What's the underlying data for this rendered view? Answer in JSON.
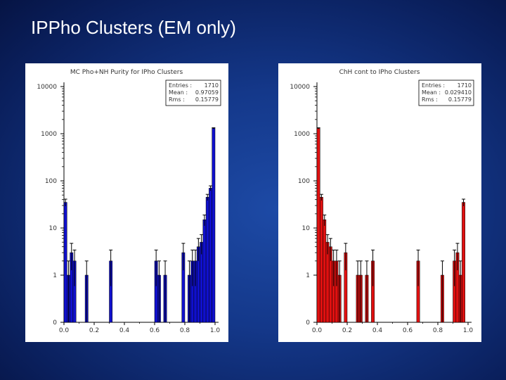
{
  "slide": {
    "title": "IPPho Clusters (EM only)"
  },
  "colors": {
    "left_bar": "#1010cc",
    "right_bar": "#e01010",
    "error_bar": "#000000"
  },
  "chart_data": [
    {
      "type": "bar",
      "title": "MC Pho+NH Purity for IPho Clusters",
      "yscale": "log",
      "xlim": [
        0.0,
        1.0
      ],
      "ylim_display": [
        0,
        10000
      ],
      "x_ticks": [
        "0.0",
        "0.2",
        "0.4",
        "0.6",
        "0.8",
        "1.0"
      ],
      "y_ticks": [
        {
          "label": "10000",
          "value": 10000
        },
        {
          "label": "1000",
          "value": 1000
        },
        {
          "label": "100",
          "value": 100
        },
        {
          "label": "10",
          "value": 10
        },
        {
          "label": "1",
          "value": 1
        },
        {
          "label": "0",
          "value": 0
        }
      ],
      "stats": [
        {
          "label": "Entries :",
          "value": "1710"
        },
        {
          "label": "Mean :",
          "value": "0.97059"
        },
        {
          "label": "Rms :",
          "value": "0.15779"
        }
      ],
      "bin_width": 0.02,
      "bars": [
        {
          "x": 0.0,
          "y": 35
        },
        {
          "x": 0.02,
          "y": 1
        },
        {
          "x": 0.04,
          "y": 3
        },
        {
          "x": 0.06,
          "y": 2
        },
        {
          "x": 0.14,
          "y": 1
        },
        {
          "x": 0.3,
          "y": 2
        },
        {
          "x": 0.6,
          "y": 2
        },
        {
          "x": 0.62,
          "y": 1
        },
        {
          "x": 0.66,
          "y": 1
        },
        {
          "x": 0.78,
          "y": 3
        },
        {
          "x": 0.82,
          "y": 1
        },
        {
          "x": 0.84,
          "y": 2
        },
        {
          "x": 0.86,
          "y": 2
        },
        {
          "x": 0.88,
          "y": 4
        },
        {
          "x": 0.9,
          "y": 5
        },
        {
          "x": 0.92,
          "y": 15
        },
        {
          "x": 0.94,
          "y": 45
        },
        {
          "x": 0.96,
          "y": 70
        },
        {
          "x": 0.98,
          "y": 1300
        }
      ]
    },
    {
      "type": "bar",
      "title": "ChH cont to IPho Clusters",
      "yscale": "log",
      "xlim": [
        0.0,
        1.0
      ],
      "ylim_display": [
        0,
        10000
      ],
      "x_ticks": [
        "0.0",
        "0.2",
        "0.4",
        "0.6",
        "0.8",
        "1.0"
      ],
      "y_ticks": [
        {
          "label": "10000",
          "value": 10000
        },
        {
          "label": "1000",
          "value": 1000
        },
        {
          "label": "100",
          "value": 100
        },
        {
          "label": "10",
          "value": 10
        },
        {
          "label": "1",
          "value": 1
        },
        {
          "label": "0",
          "value": 0
        }
      ],
      "stats": [
        {
          "label": "Entries :",
          "value": "1710"
        },
        {
          "label": "Mean :",
          "value": "0.029410"
        },
        {
          "label": "Rms :",
          "value": "0.15779"
        }
      ],
      "bin_width": 0.02,
      "bars": [
        {
          "x": 0.0,
          "y": 1300
        },
        {
          "x": 0.02,
          "y": 45
        },
        {
          "x": 0.04,
          "y": 15
        },
        {
          "x": 0.06,
          "y": 5
        },
        {
          "x": 0.08,
          "y": 4
        },
        {
          "x": 0.1,
          "y": 2
        },
        {
          "x": 0.12,
          "y": 2
        },
        {
          "x": 0.14,
          "y": 1
        },
        {
          "x": 0.18,
          "y": 3
        },
        {
          "x": 0.26,
          "y": 1
        },
        {
          "x": 0.28,
          "y": 1
        },
        {
          "x": 0.32,
          "y": 1
        },
        {
          "x": 0.36,
          "y": 2
        },
        {
          "x": 0.66,
          "y": 2
        },
        {
          "x": 0.82,
          "y": 1
        },
        {
          "x": 0.9,
          "y": 2
        },
        {
          "x": 0.92,
          "y": 3
        },
        {
          "x": 0.94,
          "y": 1
        },
        {
          "x": 0.96,
          "y": 35
        }
      ]
    }
  ]
}
